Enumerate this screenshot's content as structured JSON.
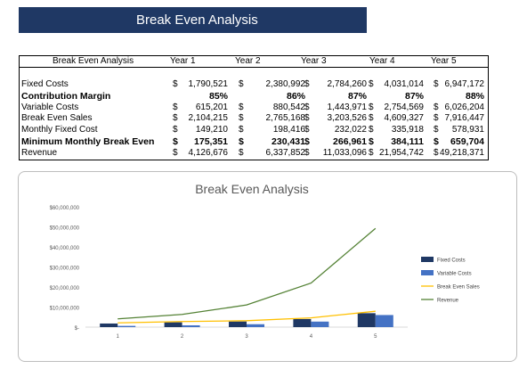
{
  "banner": {
    "title": "Break Even Analysis"
  },
  "table": {
    "header": [
      "Break Even Analysis",
      "Year 1",
      "Year 2",
      "Year 3",
      "Year 4",
      "Year 5"
    ],
    "rows": [
      {
        "label": "Fixed Costs",
        "bold": false,
        "cells": [
          [
            "$",
            "1,790,521"
          ],
          [
            "$",
            "2,380,992"
          ],
          [
            "$",
            "2,784,260"
          ],
          [
            "$",
            "4,031,014"
          ],
          [
            "$",
            "6,947,172"
          ]
        ]
      },
      {
        "label": "Contribution Margin",
        "bold": true,
        "cells": [
          [
            "",
            "85%"
          ],
          [
            "",
            "86%"
          ],
          [
            "",
            "87%"
          ],
          [
            "",
            "87%"
          ],
          [
            "",
            "88%"
          ]
        ]
      },
      {
        "label": "Variable Costs",
        "bold": false,
        "cells": [
          [
            "$",
            "615,201"
          ],
          [
            "$",
            "880,542"
          ],
          [
            "$",
            "1,443,971"
          ],
          [
            "$",
            "2,754,569"
          ],
          [
            "$",
            "6,026,204"
          ]
        ]
      },
      {
        "label": "Break Even Sales",
        "bold": false,
        "cells": [
          [
            "$",
            "2,104,215"
          ],
          [
            "$",
            "2,765,168"
          ],
          [
            "$",
            "3,203,526"
          ],
          [
            "$",
            "4,609,327"
          ],
          [
            "$",
            "7,916,447"
          ]
        ]
      },
      {
        "label": "Monthly Fixed Cost",
        "bold": false,
        "cells": [
          [
            "$",
            "149,210"
          ],
          [
            "$",
            "198,416"
          ],
          [
            "$",
            "232,022"
          ],
          [
            "$",
            "335,918"
          ],
          [
            "$",
            "578,931"
          ]
        ]
      },
      {
        "label": "Minimum Monthly Break Even",
        "bold": true,
        "cells": [
          [
            "$",
            "175,351"
          ],
          [
            "$",
            "230,431"
          ],
          [
            "$",
            "266,961"
          ],
          [
            "$",
            "384,111"
          ],
          [
            "$",
            "659,704"
          ]
        ]
      },
      {
        "label": "Revenue",
        "bold": false,
        "cells": [
          [
            "$",
            "4,126,676"
          ],
          [
            "$",
            "6,337,852"
          ],
          [
            "$",
            "11,033,096"
          ],
          [
            "$",
            "21,954,742"
          ],
          [
            "$",
            "49,218,371"
          ]
        ]
      }
    ]
  },
  "chart_data": {
    "type": "bar",
    "title": "Break Even Analysis",
    "categories": [
      "1",
      "2",
      "3",
      "4",
      "5"
    ],
    "ylim": [
      0,
      60000000
    ],
    "yticks": [
      "$60,000,000",
      "$50,000,000",
      "$40,000,000",
      "$30,000,000",
      "$20,000,000",
      "$10,000,000",
      "$-"
    ],
    "ytick_values": [
      60000000,
      50000000,
      40000000,
      30000000,
      20000000,
      10000000,
      0
    ],
    "legend_position": "right",
    "grid": false,
    "series": [
      {
        "name": "Fixed Costs",
        "kind": "bar",
        "color": "#1f3864",
        "values": [
          1790521,
          2380992,
          2784260,
          4031014,
          6947172
        ]
      },
      {
        "name": "Variable Costs",
        "kind": "bar",
        "color": "#4472c4",
        "values": [
          615201,
          880542,
          1443971,
          2754569,
          6026204
        ]
      },
      {
        "name": "Break Even Sales",
        "kind": "line",
        "color": "#ffc000",
        "values": [
          2104215,
          2765168,
          3203526,
          4609327,
          7916447
        ]
      },
      {
        "name": "Revenue",
        "kind": "line",
        "color": "#548235",
        "values": [
          4126676,
          6337852,
          11033096,
          21954742,
          49218371
        ]
      }
    ]
  }
}
